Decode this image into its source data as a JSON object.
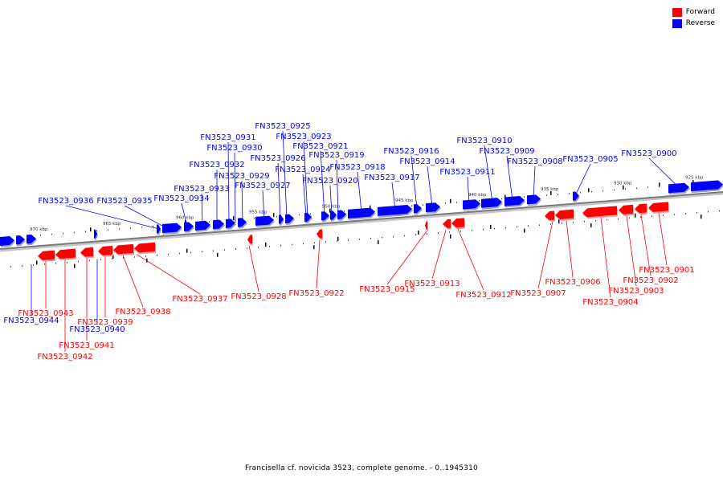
{
  "legend": {
    "forward_label": "Forward",
    "reverse_label": "Reverse",
    "forward_color": "#ff0000",
    "reverse_color": "#0000ff"
  },
  "caption": "Francisella cf. novicida 3523, complete genome. - 0..1945310",
  "axis_labels": [
    "970 kbp",
    "965 kbp",
    "960 kbp",
    "955 kbp",
    "950 kbp",
    "945 kbp",
    "940 kbp",
    "935 kbp",
    "930 kbp",
    "925 kbp"
  ],
  "reverse_genes": [
    "FN3523_0944",
    "FN3523_0940",
    "FN3523_0936",
    "FN3523_0935",
    "FN3523_0934",
    "FN3523_0933",
    "FN3523_0932",
    "FN3523_0931",
    "FN3523_0930",
    "FN3523_0929",
    "FN3523_0927",
    "FN3523_0926",
    "FN3523_0925",
    "FN3523_0924",
    "FN3523_0923",
    "FN3523_0921",
    "FN3523_0920",
    "FN3523_0919",
    "FN3523_0918",
    "FN3523_0917",
    "FN3523_0916",
    "FN3523_0914",
    "FN3523_0911",
    "FN3523_0910",
    "FN3523_0909",
    "FN3523_0908",
    "FN3523_0905",
    "FN3523_0900"
  ],
  "forward_genes": [
    "FN3523_0943",
    "FN3523_0942",
    "FN3523_0941",
    "FN3523_0939",
    "FN3523_0938",
    "FN3523_0937",
    "FN3523_0928",
    "FN3523_0922",
    "FN3523_0915",
    "FN3523_0913",
    "FN3523_0912",
    "FN3523_0907",
    "FN3523_0906",
    "FN3523_0904",
    "FN3523_0903",
    "FN3523_0902",
    "FN3523_0901"
  ]
}
